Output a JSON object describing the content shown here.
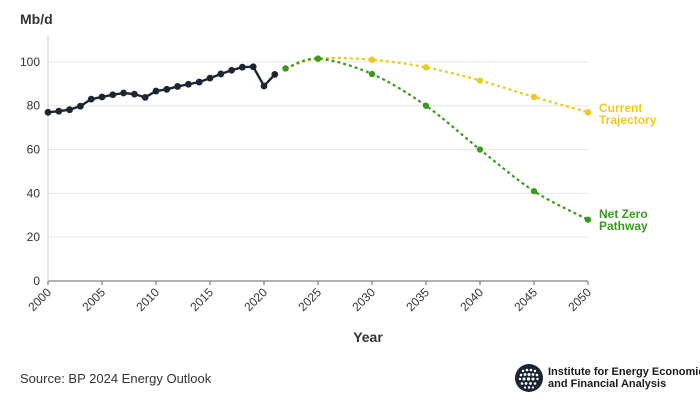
{
  "chart_data": {
    "type": "line",
    "title": "",
    "ylabel": "Mb/d",
    "xlabel": "Year",
    "xlim": [
      2000,
      2050
    ],
    "ylim": [
      0,
      110
    ],
    "x_ticks": [
      "2000",
      "2005",
      "2010",
      "2015",
      "2020",
      "2025",
      "2030",
      "2035",
      "2040",
      "2045",
      "2050"
    ],
    "y_ticks": [
      "0",
      "20",
      "40",
      "60",
      "80",
      "100"
    ],
    "grid": "horizontal",
    "series": [
      {
        "name": "",
        "color": "#1c2633",
        "style": "solid",
        "points": [
          [
            2000,
            77.0
          ],
          [
            2001,
            77.5
          ],
          [
            2002,
            78.2
          ],
          [
            2003,
            79.8
          ],
          [
            2004,
            83.0
          ],
          [
            2005,
            84.0
          ],
          [
            2006,
            85.0
          ],
          [
            2007,
            85.8
          ],
          [
            2008,
            85.3
          ],
          [
            2009,
            83.8
          ],
          [
            2010,
            86.7
          ],
          [
            2011,
            87.5
          ],
          [
            2012,
            88.8
          ],
          [
            2013,
            89.8
          ],
          [
            2014,
            90.8
          ],
          [
            2015,
            92.6
          ],
          [
            2016,
            94.5
          ],
          [
            2017,
            96.2
          ],
          [
            2018,
            97.6
          ],
          [
            2019,
            97.8
          ],
          [
            2020,
            89.0
          ],
          [
            2021,
            94.3
          ]
        ]
      },
      {
        "name": "Current Trajectory",
        "color": "#f2c81f",
        "style": "dashed",
        "points": [
          [
            2022,
            97.0
          ],
          [
            2025,
            101.5
          ],
          [
            2030,
            101.0
          ],
          [
            2035,
            97.5
          ],
          [
            2040,
            91.5
          ],
          [
            2045,
            84.0
          ],
          [
            2050,
            77.0
          ]
        ]
      },
      {
        "name": "Net Zero Pathway",
        "color": "#3a9a1e",
        "style": "dashed",
        "points": [
          [
            2022,
            97.0
          ],
          [
            2025,
            101.5
          ],
          [
            2030,
            94.5
          ],
          [
            2035,
            80.0
          ],
          [
            2040,
            60.0
          ],
          [
            2045,
            41.0
          ],
          [
            2050,
            28.0
          ]
        ]
      }
    ],
    "series_labels": [
      {
        "lines": [
          "Current",
          "Trajectory"
        ],
        "color": "#f2c81f"
      },
      {
        "lines": [
          "Net Zero",
          "Pathway"
        ],
        "color": "#3a9a1e"
      }
    ],
    "source": "Source: BP 2024 Energy Outlook"
  },
  "logo": {
    "line1": "Institute for Energy Economics",
    "line2": "and Financial Analysis"
  }
}
